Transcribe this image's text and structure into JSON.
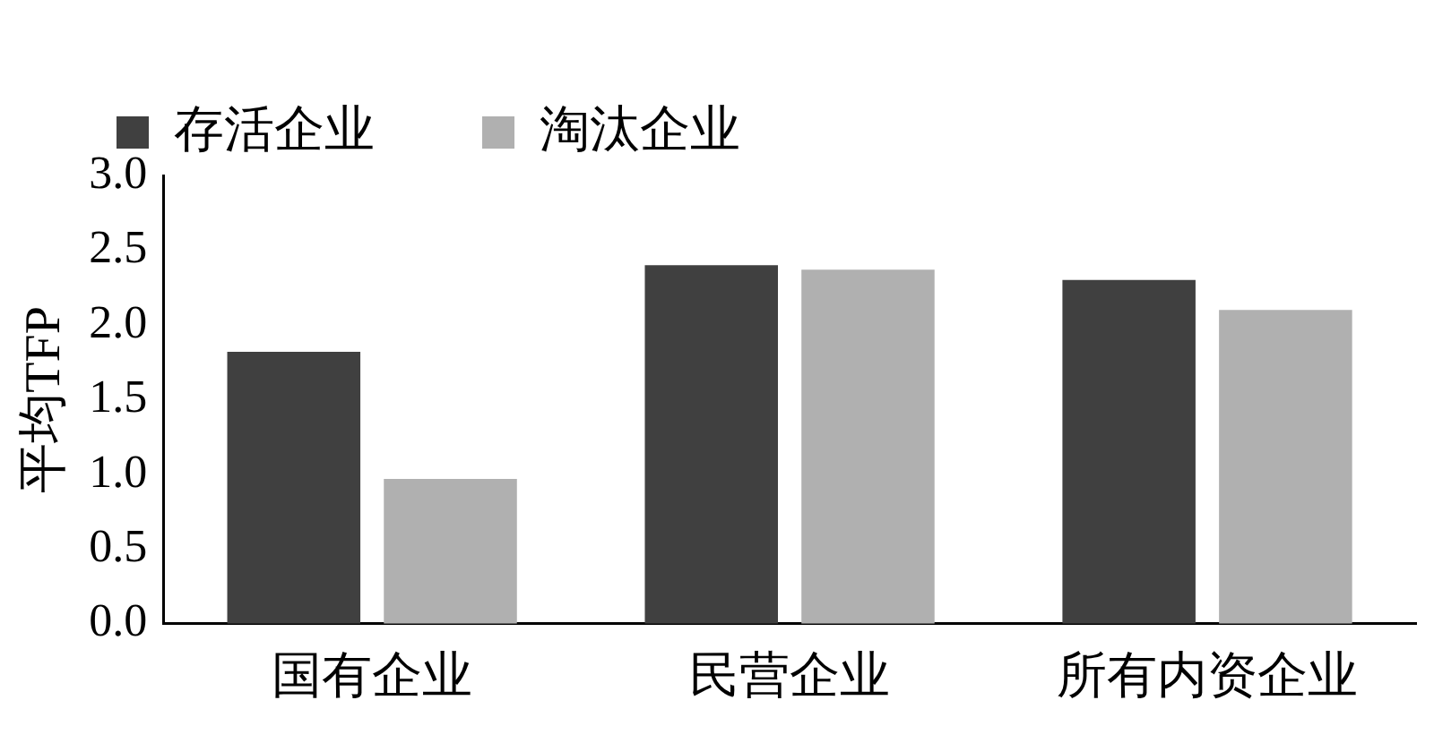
{
  "chart_data": {
    "type": "bar",
    "ylabel": "平均TFP",
    "categories": [
      "国有企业",
      "民营企业",
      "所有内资企业"
    ],
    "series": [
      {
        "name": "存活企业",
        "color": "#404040",
        "values": [
          1.82,
          2.4,
          2.3
        ]
      },
      {
        "name": "淘汰企业",
        "color": "#b0b0b0",
        "values": [
          0.97,
          2.37,
          2.1
        ]
      }
    ],
    "ylim": [
      0,
      3
    ],
    "yticks": [
      {
        "value": 0,
        "label": "0.0"
      },
      {
        "value": 0.5,
        "label": "0.5"
      },
      {
        "value": 1,
        "label": "1.0"
      },
      {
        "value": 1.5,
        "label": "1.5"
      },
      {
        "value": 2,
        "label": "2.0"
      },
      {
        "value": 2.5,
        "label": "2.5"
      },
      {
        "value": 3,
        "label": "3.0"
      }
    ],
    "grid": false,
    "legend": "top left"
  }
}
